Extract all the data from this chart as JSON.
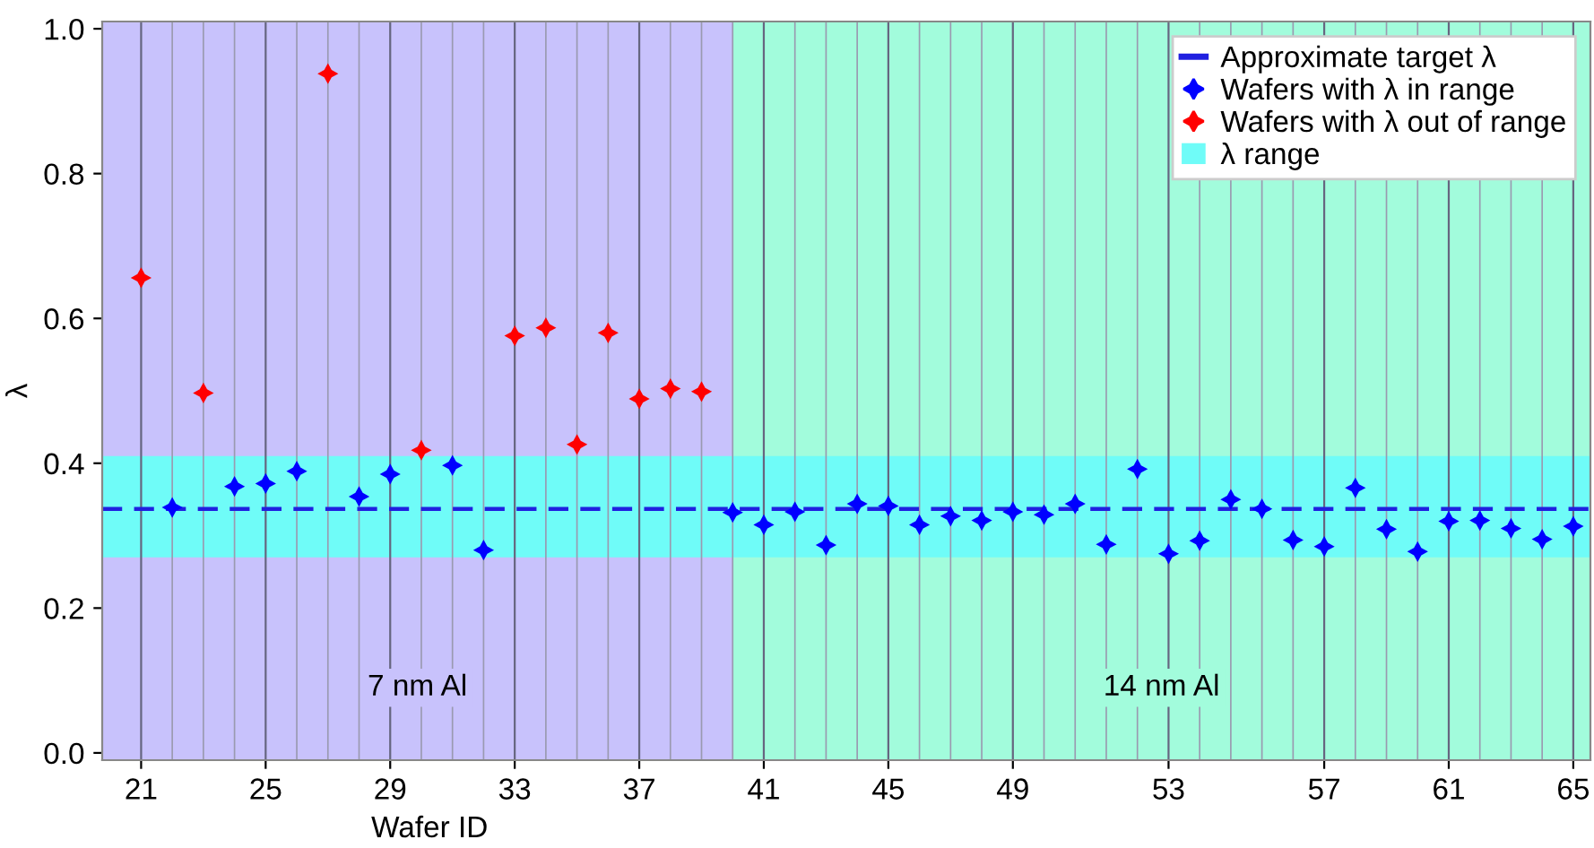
{
  "chart_data": {
    "type": "scatter",
    "xlabel": "Wafer ID",
    "ylabel": "λ",
    "categories": [
      "21",
      null,
      null,
      null,
      "25",
      null,
      null,
      null,
      "29",
      null,
      null,
      null,
      "33",
      null,
      null,
      null,
      "37",
      null,
      null,
      null,
      "41",
      null,
      null,
      null,
      "45",
      null,
      null,
      null,
      "49",
      null,
      null,
      null,
      null,
      "53",
      null,
      null,
      null,
      null,
      "57",
      null,
      null,
      null,
      "61",
      null,
      null,
      null,
      "65"
    ],
    "series": [
      {
        "name": "Wafers with λ in range",
        "color": "#0000ff",
        "values": [
          null,
          0.339,
          null,
          0.368,
          0.372,
          0.389,
          null,
          0.354,
          0.385,
          null,
          0.397,
          0.28,
          null,
          null,
          null,
          null,
          null,
          null,
          null,
          0.332,
          0.315,
          0.333,
          0.287,
          0.344,
          0.341,
          0.315,
          0.327,
          0.321,
          0.333,
          0.329,
          0.344,
          0.288,
          0.392,
          0.275,
          0.293,
          0.35,
          0.337,
          0.294,
          0.285,
          0.366,
          0.309,
          0.278,
          0.32,
          0.321,
          0.31,
          0.295,
          0.313
        ]
      },
      {
        "name": "Wafers with λ out of range",
        "color": "#ff0000",
        "values": [
          0.656,
          null,
          0.497,
          null,
          null,
          null,
          0.938,
          null,
          null,
          0.418,
          null,
          null,
          0.576,
          0.587,
          0.426,
          0.58,
          0.489,
          0.503,
          0.499,
          null,
          null,
          null,
          null,
          null,
          null,
          null,
          null,
          null,
          null,
          null,
          null,
          null,
          null,
          null,
          null,
          null,
          null,
          null,
          null,
          null,
          null,
          null,
          null,
          null,
          null,
          null,
          null
        ]
      }
    ],
    "marker": "star",
    "ylim": [
      -0.01,
      1.01
    ],
    "yticks": [
      {
        "value": 0,
        "label": "0.0"
      },
      0.2,
      0.4,
      0.6,
      0.8,
      {
        "value": 1,
        "label": "1.0"
      }
    ],
    "grid": "x",
    "ref_lines": [
      {
        "axis": "y",
        "value": 0.337,
        "label": "Approximate target λ",
        "color": "#2020e0",
        "line_style": "dashed"
      }
    ],
    "bands": [
      {
        "axis": "y",
        "from": 0.27,
        "to": 0.41,
        "label": "λ range",
        "color": "#6ffcf8"
      }
    ],
    "annotations": [
      "7 nm Al",
      "14 nm Al"
    ],
    "legend": "top right"
  }
}
